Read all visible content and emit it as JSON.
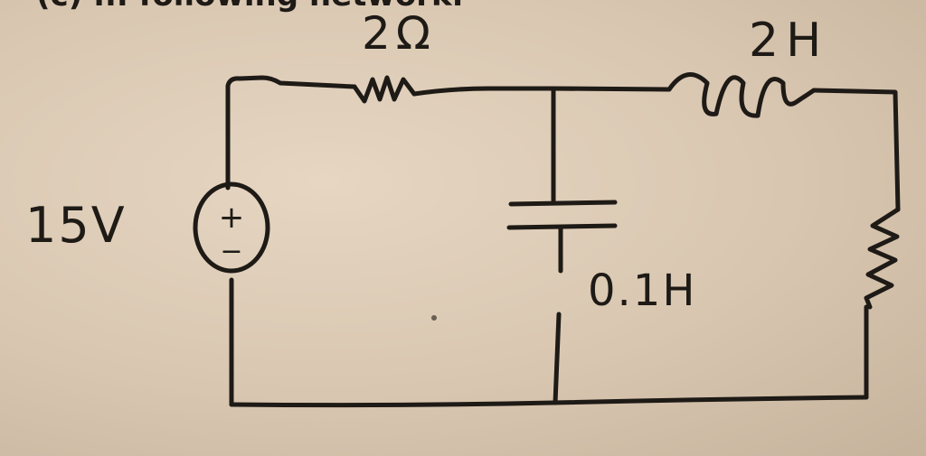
{
  "header_text": "(c) ... following network.",
  "components": {
    "source": {
      "label": "15V",
      "plus": "+",
      "minus": "−"
    },
    "resistor_top": {
      "label": "2Ω"
    },
    "inductor": {
      "label": "2H"
    },
    "capacitor": {
      "label": "0.1H"
    },
    "resistor_right": {
      "label": ""
    }
  },
  "colors": {
    "ink": "#1e1a16",
    "paper": "#dccab4"
  }
}
